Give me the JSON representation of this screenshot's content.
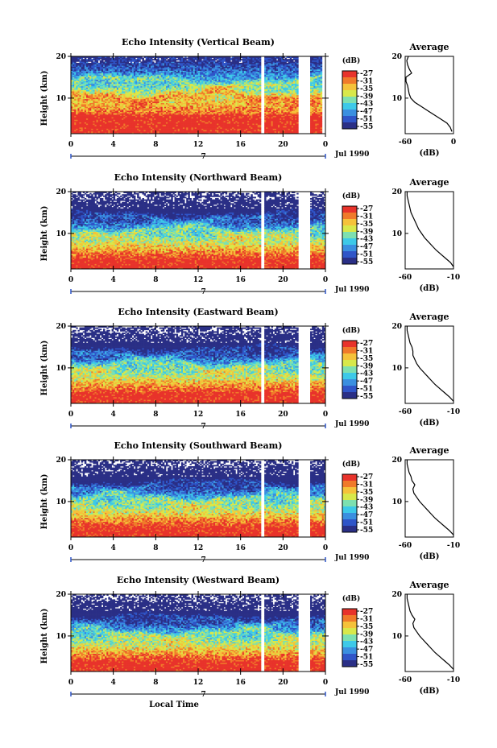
{
  "figure": {
    "xlabel": "Local Time",
    "date_label": "Jul 1990",
    "date_marker": "7",
    "time_ticks": [
      "0",
      "4",
      "8",
      "12",
      "16",
      "20",
      "0"
    ],
    "height_ticks": [
      "20",
      "10"
    ],
    "ylabel": "Height (km)",
    "colorbar_unit": "(dB)",
    "colorbar_ticks": [
      "-27",
      "-31",
      "-35",
      "-39",
      "-43",
      "-47",
      "-51",
      "-55"
    ],
    "average_title": "Average",
    "average_xlabel": "(dB)"
  },
  "colors": {
    "colormap": [
      "#2a2f86",
      "#2f55c8",
      "#3a8fe0",
      "#3dc9e8",
      "#7de0b0",
      "#d8e84a",
      "#f5c23a",
      "#f07a2a",
      "#e8332b"
    ],
    "background": "#ffffff",
    "gap": "#ffffff"
  },
  "chart_data": [
    {
      "type": "heatmap",
      "title": "Echo Intensity (Vertical Beam)",
      "xlabel": "Local Time",
      "ylabel": "Height (km)",
      "xlim": [
        0,
        24
      ],
      "ylim": [
        1.5,
        20
      ],
      "clim": [
        -55,
        -27
      ],
      "x_ticks": [
        "0",
        "4",
        "8",
        "12",
        "16",
        "20",
        "0"
      ],
      "y_ticks": [
        "20",
        "10"
      ],
      "data_gaps_hours": [
        [
          17.9,
          18.2
        ],
        [
          21.5,
          22.6
        ],
        [
          23.6,
          24
        ]
      ],
      "average_profile": {
        "title": "Average",
        "xlabel": "(dB)",
        "xlim": [
          -60,
          0
        ],
        "x_ticks": [
          "-60",
          "0"
        ],
        "y_ticks": [
          "20",
          "10"
        ],
        "height_km": [
          2,
          3,
          4,
          5,
          6,
          7,
          8,
          9,
          10,
          11,
          12,
          13,
          14,
          15,
          16,
          17,
          18,
          19,
          20
        ],
        "db": [
          -2,
          -4,
          -8,
          -16,
          -24,
          -32,
          -40,
          -48,
          -53,
          -55,
          -56,
          -57,
          -59,
          -59,
          -52,
          -55,
          -57,
          -58,
          -56
        ]
      }
    },
    {
      "type": "heatmap",
      "title": "Echo Intensity (Northward Beam)",
      "xlabel": "Local Time",
      "ylabel": "Height (km)",
      "xlim": [
        0,
        24
      ],
      "ylim": [
        1.5,
        20
      ],
      "clim": [
        -55,
        -27
      ],
      "x_ticks": [
        "0",
        "4",
        "8",
        "12",
        "16",
        "20",
        "0"
      ],
      "y_ticks": [
        "20",
        "10"
      ],
      "data_gaps_hours": [
        [
          17.9,
          18.2
        ],
        [
          21.5,
          22.6
        ]
      ],
      "average_profile": {
        "title": "Average",
        "xlabel": "(dB)",
        "xlim": [
          -60,
          -10
        ],
        "x_ticks": [
          "-60",
          "-10"
        ],
        "y_ticks": [
          "20",
          "10"
        ],
        "height_km": [
          2,
          3,
          4,
          5,
          6,
          7,
          8,
          9,
          10,
          11,
          12,
          13,
          14,
          15,
          16,
          17,
          18,
          19,
          20
        ],
        "db": [
          -10,
          -13,
          -18,
          -23,
          -28,
          -32,
          -36,
          -40,
          -43,
          -46,
          -48,
          -50,
          -52,
          -54,
          -55,
          -56,
          -57,
          -58,
          -58
        ]
      }
    },
    {
      "type": "heatmap",
      "title": "Echo Intensity (Eastward Beam)",
      "xlabel": "Local Time",
      "ylabel": "Height (km)",
      "xlim": [
        0,
        24
      ],
      "ylim": [
        1.5,
        20
      ],
      "clim": [
        -55,
        -27
      ],
      "x_ticks": [
        "0",
        "4",
        "8",
        "12",
        "16",
        "20",
        "0"
      ],
      "y_ticks": [
        "20",
        "10"
      ],
      "data_gaps_hours": [
        [
          17.9,
          18.2
        ],
        [
          21.5,
          22.6
        ]
      ],
      "average_profile": {
        "title": "Average",
        "xlabel": "(dB)",
        "xlim": [
          -60,
          -10
        ],
        "x_ticks": [
          "-60",
          "-10"
        ],
        "y_ticks": [
          "20",
          "10"
        ],
        "height_km": [
          2,
          3,
          4,
          5,
          6,
          7,
          8,
          9,
          10,
          11,
          12,
          13,
          14,
          15,
          16,
          17,
          18,
          19,
          20
        ],
        "db": [
          -10,
          -14,
          -19,
          -24,
          -29,
          -33,
          -37,
          -41,
          -45,
          -48,
          -50,
          -52,
          -52,
          -53,
          -55,
          -56,
          -57,
          -58,
          -58
        ]
      }
    },
    {
      "type": "heatmap",
      "title": "Echo Intensity (Southward Beam)",
      "xlabel": "Local Time",
      "ylabel": "Height (km)",
      "xlim": [
        0,
        24
      ],
      "ylim": [
        1.5,
        20
      ],
      "clim": [
        -55,
        -27
      ],
      "x_ticks": [
        "0",
        "4",
        "8",
        "12",
        "16",
        "20",
        "0"
      ],
      "y_ticks": [
        "20",
        "10"
      ],
      "data_gaps_hours": [
        [
          17.9,
          18.2
        ],
        [
          21.5,
          22.6
        ]
      ],
      "average_profile": {
        "title": "Average",
        "xlabel": "(dB)",
        "xlim": [
          -60,
          -10
        ],
        "x_ticks": [
          "-60",
          "-10"
        ],
        "y_ticks": [
          "20",
          "10"
        ],
        "height_km": [
          2,
          3,
          4,
          5,
          6,
          7,
          8,
          9,
          10,
          11,
          12,
          13,
          14,
          15,
          16,
          17,
          18,
          19,
          20
        ],
        "db": [
          -10,
          -14,
          -19,
          -24,
          -29,
          -33,
          -37,
          -41,
          -45,
          -48,
          -51,
          -52,
          -50,
          -53,
          -54,
          -56,
          -57,
          -58,
          -58
        ]
      }
    },
    {
      "type": "heatmap",
      "title": "Echo Intensity (Westward Beam)",
      "xlabel": "Local Time",
      "ylabel": "Height (km)",
      "xlim": [
        0,
        24
      ],
      "ylim": [
        1.5,
        20
      ],
      "clim": [
        -55,
        -27
      ],
      "x_ticks": [
        "0",
        "4",
        "8",
        "12",
        "16",
        "20",
        "0"
      ],
      "y_ticks": [
        "20",
        "10"
      ],
      "data_gaps_hours": [
        [
          17.9,
          18.2
        ],
        [
          21.5,
          22.6
        ]
      ],
      "average_profile": {
        "title": "Average",
        "xlabel": "(dB)",
        "xlim": [
          -60,
          -10
        ],
        "x_ticks": [
          "-60",
          "-10"
        ],
        "y_ticks": [
          "20",
          "10"
        ],
        "height_km": [
          2,
          3,
          4,
          5,
          6,
          7,
          8,
          9,
          10,
          11,
          12,
          13,
          14,
          15,
          16,
          17,
          18,
          19,
          20
        ],
        "db": [
          -10,
          -14,
          -19,
          -24,
          -29,
          -33,
          -37,
          -41,
          -45,
          -48,
          -51,
          -52,
          -50,
          -53,
          -55,
          -56,
          -57,
          -58,
          -58
        ]
      }
    }
  ]
}
